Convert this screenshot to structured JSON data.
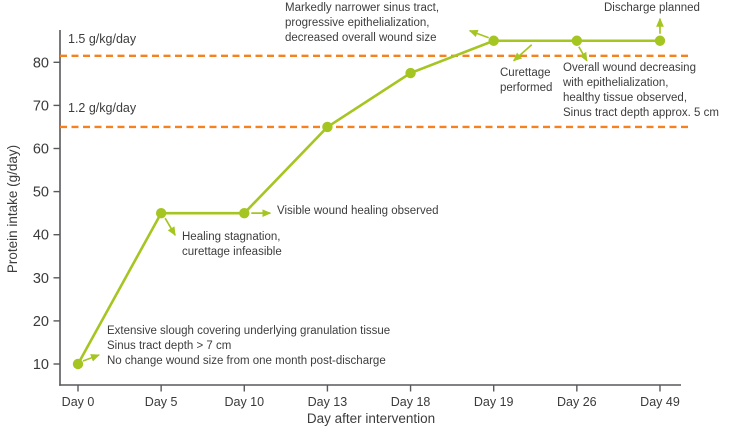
{
  "colors": {
    "series": "#a5c521",
    "threshold": "#f5821f",
    "axis": "#58595b",
    "tick_text": "#3a3a3a",
    "annotation_text": "#3d3d3d",
    "background": "#ffffff"
  },
  "chart_data": {
    "type": "line",
    "title": "",
    "xlabel": "Day after intervention",
    "ylabel": "Protein intake (g/day)",
    "x_categories": [
      "Day 0",
      "Day 5",
      "Day 10",
      "Day 13",
      "Day 18",
      "Day 19",
      "Day 26",
      "Day 49"
    ],
    "values": [
      10,
      45,
      45,
      65,
      77.5,
      85,
      85,
      85
    ],
    "yticks": [
      10,
      20,
      30,
      40,
      50,
      60,
      70,
      80
    ],
    "ylim": [
      5,
      88
    ],
    "grid": false,
    "legend": "none",
    "thresholds": [
      {
        "label": "1.5 g/kg/day",
        "value": 81.5,
        "style": "dashed"
      },
      {
        "label": "1.2 g/kg/day",
        "value": 65,
        "style": "dashed"
      }
    ],
    "annotations": {
      "day0": {
        "anchor": "Day 0",
        "text": "Extensive slough covering underlying granulation tissue\nSinus tract depth > 7 cm\nNo change wound size from one month post-discharge"
      },
      "day5": {
        "anchor": "Day 5",
        "text": "Healing stagnation,\ncurettage infeasible"
      },
      "day10": {
        "anchor": "Day 10",
        "text": "Visible wound healing observed"
      },
      "day19": {
        "anchor": "Day 19",
        "text": "Markedly narrower sinus tract,\nprogressive epithelialization,\ndecreased overall wound size"
      },
      "day19_26": {
        "anchor": "Day 19 to Day 26 segment",
        "text": "Curettage\nperformed"
      },
      "day26": {
        "anchor": "Day 26",
        "text": "Overall wound decreasing\nwith epithelialization,\nhealthy tissue observed,\nSinus tract depth approx. 5 cm"
      },
      "day49": {
        "anchor": "Day 49",
        "text": "Discharge planned"
      }
    }
  }
}
